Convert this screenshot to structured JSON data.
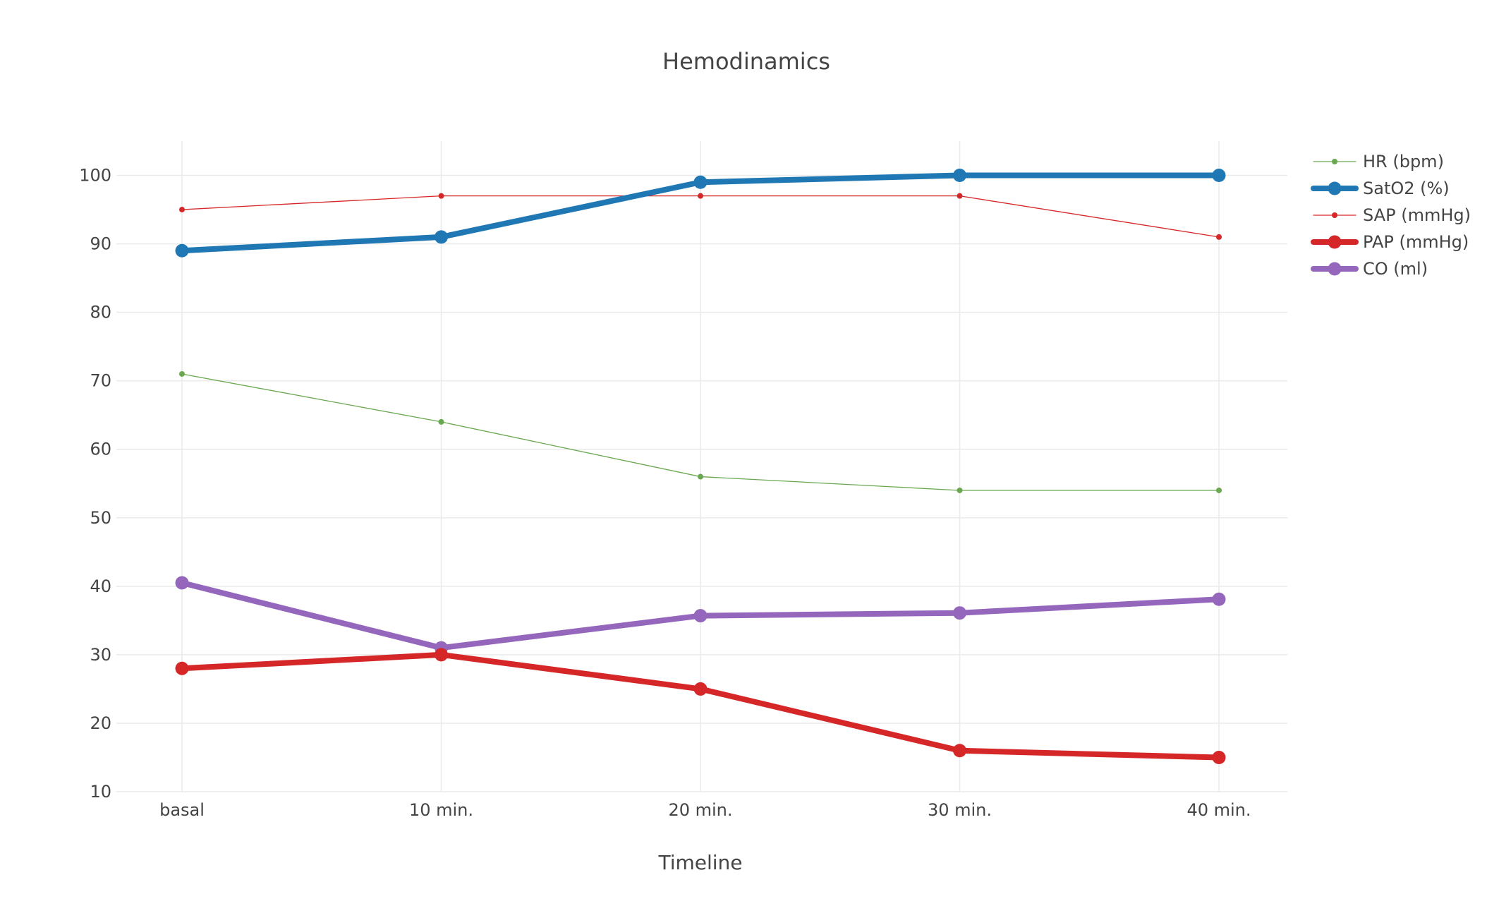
{
  "chart_data": {
    "type": "line",
    "title": "Hemodinamics",
    "xlabel": "Timeline",
    "ylabel": "",
    "categories": [
      "basal",
      "10 min.",
      "20 min.",
      "30 min.",
      "40 min."
    ],
    "ylim": [
      10,
      105
    ],
    "yticks": [
      10,
      20,
      30,
      40,
      50,
      60,
      70,
      80,
      90,
      100
    ],
    "grid": true,
    "legend_position": "top-right",
    "series": [
      {
        "name": "HR (bpm)",
        "values": [
          71,
          64,
          56,
          54,
          54
        ],
        "color": "#6aa84f",
        "weight": "thin"
      },
      {
        "name": "SatO2 (%)",
        "values": [
          89,
          91,
          99,
          100,
          100
        ],
        "color": "#1f77b4",
        "weight": "thick"
      },
      {
        "name": "SAP (mmHg)",
        "values": [
          95,
          97,
          97,
          97,
          91
        ],
        "color": "#d62728",
        "weight": "thin"
      },
      {
        "name": "PAP (mmHg)",
        "values": [
          28,
          30,
          25,
          16,
          15
        ],
        "color": "#d62728",
        "weight": "thick"
      },
      {
        "name": "CO (ml)",
        "values": [
          40.5,
          31,
          35.7,
          36.1,
          38.1
        ],
        "color": "#9467bd",
        "weight": "thick"
      }
    ]
  }
}
